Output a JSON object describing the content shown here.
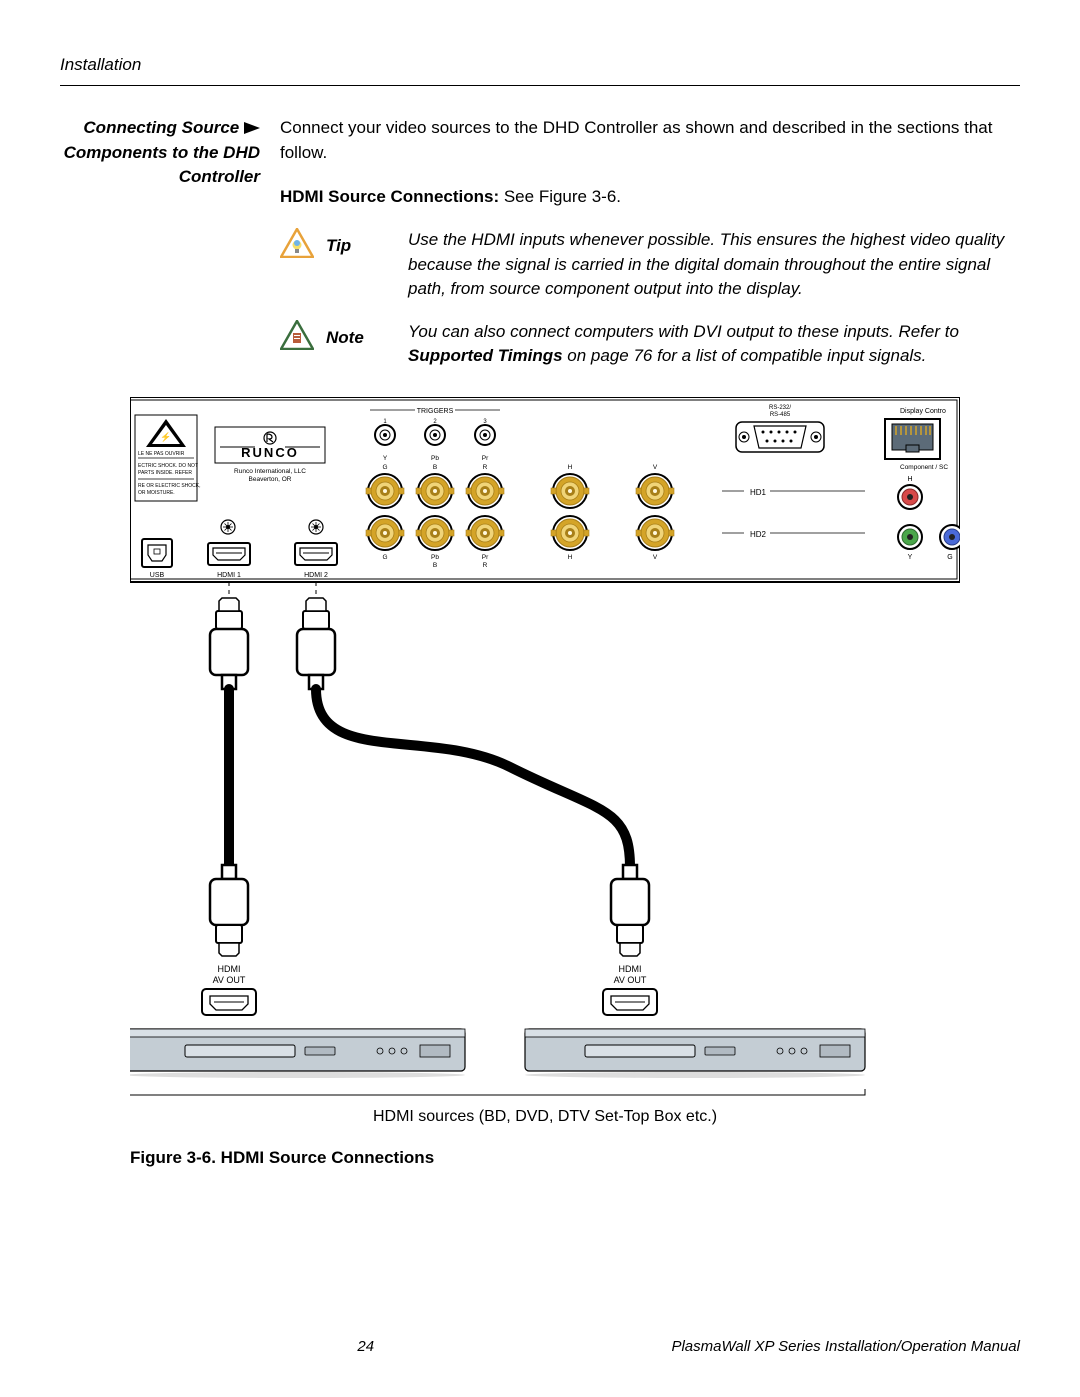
{
  "header": {
    "section": "Installation"
  },
  "sidebar": {
    "heading_line1": "Connecting Source",
    "heading_line2": "Components to the DHD",
    "heading_line3": "Controller"
  },
  "body": {
    "intro": "Connect your video sources to the DHD Controller as shown and described in the sections that follow.",
    "subheading_bold": "HDMI Source Connections:",
    "subheading_rest": " See Figure 3-6.",
    "tip": {
      "label": "Tip",
      "text": "Use the HDMI inputs whenever possible. This ensures the highest video quality because the signal is carried in the digital domain throughout the entire signal path, from source component output into the display.",
      "icon_stroke": "#e8a23a",
      "icon_fill": "#ffffff",
      "bulb_color": "#6fb4e8"
    },
    "note": {
      "label": "Note",
      "text_pre": "You can also connect computers with DVI output to these inputs. Refer to ",
      "text_bold": "Supported Timings",
      "text_post": " on page 76 for a list of compatible input signals.",
      "icon_stroke": "#3a6e3d",
      "icon_fill": "#ffffff",
      "glyph_color": "#b85c3a"
    }
  },
  "diagram": {
    "panel": {
      "bg": "#ffffff",
      "stroke": "#000000",
      "logo_text": "RUNCO",
      "logo_sub1": "Runco International, LLC",
      "logo_sub2": "Beaverton, OR",
      "warning_lines": [
        "LE NE PAS OUVRIR",
        "ECTRIC SHOCK. DO NOT",
        "PARTS INSIDE. REFER",
        "RE OR ELECTRIC SHOCK,",
        "OR MOISTURE."
      ],
      "labels": {
        "triggers": "TRIGGERS",
        "trigger_nums": [
          "1",
          "2",
          "3"
        ],
        "rs": "RS-232/\nRS-485",
        "display_ctrl": "Display Contro",
        "ypbpr_top": [
          "Y",
          "Pb",
          "Pr"
        ],
        "gbr_top": [
          "G",
          "B",
          "R",
          "H",
          "V"
        ],
        "gbr_bot": [
          "G",
          "B",
          "R",
          "H",
          "V"
        ],
        "ypbpr_bot": [
          "Pb",
          "Pr"
        ],
        "hd1": "HD1",
        "hd2": "HD2",
        "comp": "Component / SC",
        "h": "H",
        "y": "Y",
        "g": "G",
        "usb": "USB",
        "hdmi1": "HDMI 1",
        "hdmi2": "HDMI 2"
      },
      "bnc_gold": "#d4a428",
      "bnc_gold_dark": "#a87f18",
      "rca_red": "#d84a4a",
      "rca_green": "#4aa64a",
      "rca_blue": "#4a6ad8",
      "rj45_color": "#5c6b78"
    },
    "cables": {
      "cable_color": "#000000",
      "plug_stroke": "#000000",
      "plug_fill": "#ffffff"
    },
    "sources": {
      "hdmi_label": "HDMI",
      "avout_label": "AV OUT",
      "device_fill": "#c4cdd4",
      "device_stroke": "#000000",
      "bracket_text": "HDMI sources (BD, DVD, DTV Set-Top Box etc.)"
    }
  },
  "figure_caption": "Figure 3-6. HDMI Source Connections",
  "footer": {
    "page": "24",
    "manual": "PlasmaWall XP Series Installation/Operation Manual"
  }
}
